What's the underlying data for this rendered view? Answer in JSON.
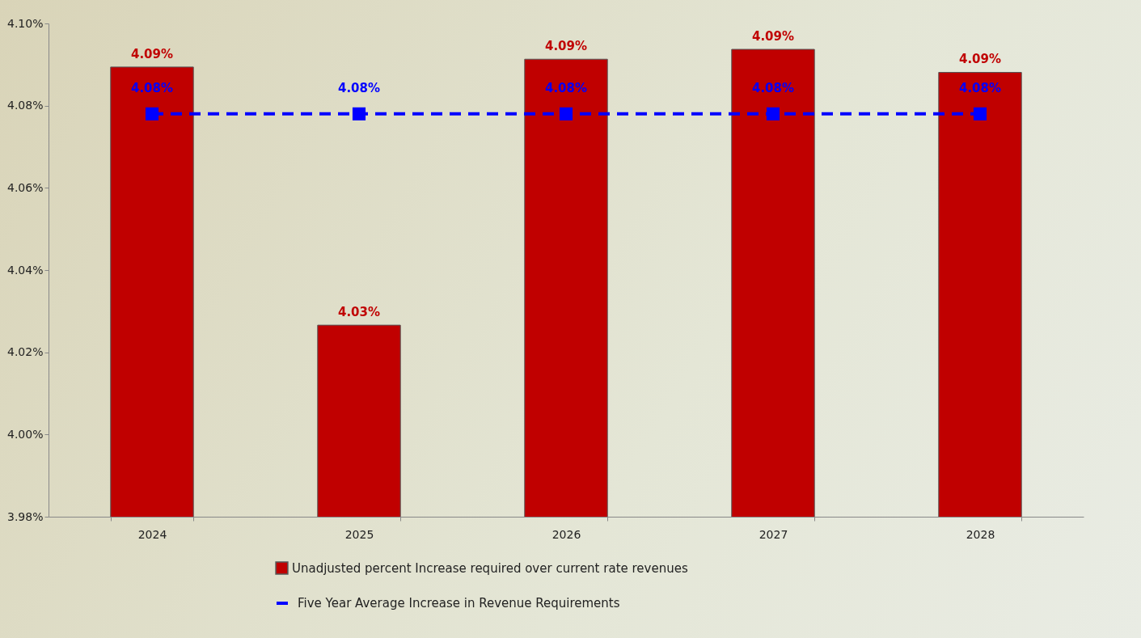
{
  "chart_data": {
    "type": "bar",
    "categories": [
      "2024",
      "2025",
      "2026",
      "2027",
      "2028"
    ],
    "series": [
      {
        "name": "Unadjusted percent Increase required over current rate revenues",
        "color": "#c00000",
        "values": [
          4.0894,
          4.0266,
          4.0913,
          4.0937,
          4.0881
        ],
        "value_labels": [
          "4.09%",
          "4.03%",
          "4.09%",
          "4.09%",
          "4.09%"
        ]
      },
      {
        "type": "line",
        "name": "Five Year Average Increase in Revenue Requirements",
        "color": "#0000ff",
        "values": [
          4.078,
          4.078,
          4.078,
          4.078,
          4.078
        ],
        "value_labels": [
          "4.08%",
          "4.08%",
          "4.08%",
          "4.08%",
          "4.08%"
        ]
      }
    ],
    "ylim": [
      3.98,
      4.1
    ],
    "yticks": [
      {
        "value": 3.98,
        "label": "3.98%"
      },
      {
        "value": 4.0,
        "label": "4.00%"
      },
      {
        "value": 4.02,
        "label": "4.02%"
      },
      {
        "value": 4.04,
        "label": "4.04%"
      },
      {
        "value": 4.06,
        "label": "4.06%"
      },
      {
        "value": 4.08,
        "label": "4.08%"
      },
      {
        "value": 4.1,
        "label": "4.10%"
      }
    ],
    "grid": false,
    "legend": "bottom",
    "marker": "square",
    "line_style": "dashed"
  }
}
